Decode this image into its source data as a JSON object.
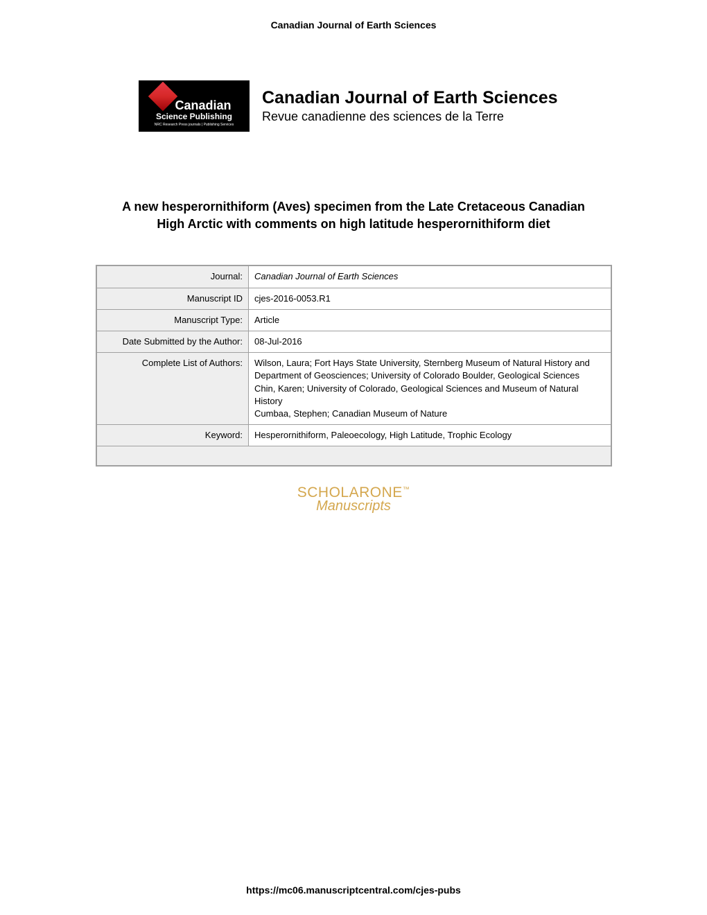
{
  "header": {
    "journal_name": "Canadian Journal of Earth Sciences"
  },
  "logo": {
    "main_text": "Canadian",
    "sub_text": "Science Publishing",
    "tiny_text": "NRC Research Press journals | Publishing Services",
    "journal_en": "Canadian Journal of Earth Sciences",
    "journal_fr": "Revue canadienne des sciences de la Terre"
  },
  "article": {
    "title": "A new hesperornithiform (Aves) specimen from the Late Cretaceous Canadian High Arctic with comments on high latitude hesperornithiform diet"
  },
  "metadata": {
    "rows": [
      {
        "label": "Journal:",
        "value": "Canadian Journal of Earth Sciences",
        "italic": true
      },
      {
        "label": "Manuscript ID",
        "value": "cjes-2016-0053.R1",
        "italic": false
      },
      {
        "label": "Manuscript Type:",
        "value": "Article",
        "italic": false
      },
      {
        "label": "Date Submitted by the Author:",
        "value": "08-Jul-2016",
        "italic": false
      },
      {
        "label": "Complete List of Authors:",
        "value": "Wilson, Laura; Fort Hays State University, Sternberg Museum of Natural History and Department of Geosciences; University of Colorado Boulder, Geological Sciences\nChin, Karen; University of Colorado, Geological Sciences and Museum of Natural History\nCumbaa, Stephen; Canadian Museum of Nature",
        "italic": false
      },
      {
        "label": "Keyword:",
        "value": "Hesperornithiform, Paleoecology, High Latitude, Trophic Ecology",
        "italic": false
      }
    ]
  },
  "scholarone": {
    "main": "SCHOLARONE",
    "sub": "Manuscripts"
  },
  "footer": {
    "url": "https://mc06.manuscriptcentral.com/cjes-pubs"
  },
  "colors": {
    "text": "#000000",
    "background": "#ffffff",
    "table_border": "#a0a0a0",
    "table_label_bg": "#eeeeee",
    "scholarone": "#d4a74e",
    "logo_bg": "#000000",
    "logo_red": "#e63946"
  }
}
